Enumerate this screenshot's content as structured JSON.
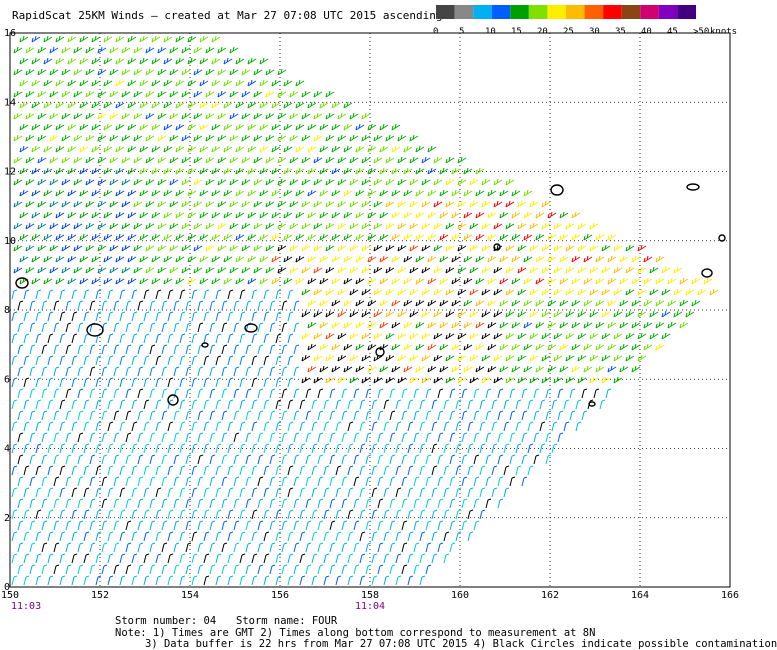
{
  "title": "RapidScat 25KM Winds — created at Mar 27 07:08 UTC 2015 ascending",
  "colorbar": {
    "colors": [
      "#444444",
      "#888888",
      "#00b0f0",
      "#0060ff",
      "#00a000",
      "#80e000",
      "#ffee00",
      "#ffbb00",
      "#ff6000",
      "#ff0000",
      "#8b4513",
      "#d00070",
      "#8000c0",
      "#400080"
    ],
    "labels": [
      "0",
      "5",
      "10",
      "15",
      "20",
      "25",
      "30",
      "35",
      "40",
      "45",
      ">50"
    ],
    "unit": "knots"
  },
  "map": {
    "lon_labels": [
      "150",
      "152",
      "154",
      "156",
      "158",
      "160",
      "162",
      "164",
      "166"
    ],
    "lat_labels": [
      "0",
      "2",
      "4",
      "6",
      "8",
      "10",
      "12",
      "14",
      "16"
    ],
    "time_labels": [
      {
        "text": "11:03",
        "lon": 150
      },
      {
        "text": "11:04",
        "lon": 158
      }
    ],
    "islands_icon": "island-outline-icon",
    "contamination_icon": "black-circle-icon"
  },
  "footer": {
    "storm_number_label": "Storm number: 04",
    "storm_name_label": "Storm name: FOUR",
    "note1": "Note: 1) Times are GMT  2) Times along bottom correspond to measurement at 8N",
    "note2": "3) Data buffer is 22 hrs from Mar 27 07:08 UTC 2015  4) Black Circles indicate possible contamination"
  }
}
